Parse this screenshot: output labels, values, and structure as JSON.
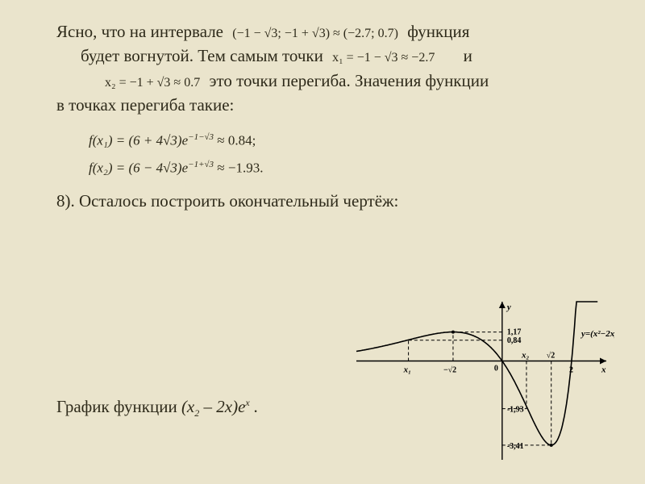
{
  "para": {
    "t1": "Ясно, что на интервале",
    "interval": "(−1 − √3; −1 + √3) ≈ (−2.7; 0.7)",
    "t2": "функция",
    "t3": "будет вогнутой. Тем самым точки",
    "x1": "x₁ = −1 − √3 ≈ −2.7",
    "t4": "и",
    "x2": "x₂ = −1 + √3 ≈ 0.7",
    "t5": "это точки перегиба. Значения функции",
    "t6": "в точках перегиба такие:"
  },
  "formulas": {
    "f1_lhs": "f(x₁) = (6 + 4√3)e",
    "f1_exp": "−1−√3",
    "f1_rhs": " ≈ 0.84;",
    "f2_lhs": "f(x₂) = (6 − 4√3)e",
    "f2_exp": "−1+√3",
    "f2_rhs": " ≈ −1.93."
  },
  "step8": "8). Осталось построить окончательный чертёж:",
  "caption": {
    "pre": "График функции ",
    "expr_open": "(x",
    "two": "2",
    "mid": " – 2x)e",
    "x": "x",
    "post": " ."
  },
  "chart": {
    "axis_color": "#000000",
    "curve_color": "#000000",
    "grid_color": "#000000",
    "background": "transparent",
    "stroke_width": 1.6,
    "dash": "4 3",
    "x_range": [
      -4.2,
      3.0
    ],
    "y_range": [
      -4.0,
      2.4
    ],
    "labels": {
      "y": "y",
      "x": "x",
      "zero": "0",
      "two": "2",
      "neg_sqrt2": "−√2",
      "sqrt2": "√2",
      "x1": "x₁",
      "x2": "x₂",
      "y117": "1,17",
      "y084": "0,84",
      "y_neg193": "-1,93",
      "y_neg341": "-3,41",
      "func": "y=(x²−2x)eˣ"
    },
    "points": {
      "x1": -2.7,
      "y1": 0.84,
      "inflection_min_sqrt2": -1.414,
      "y_at_neg_sqrt2": 1.17,
      "x2": 0.7,
      "y2": -1.93,
      "sqrt2": 1.414,
      "y_at_sqrt2": -3.41,
      "root2": 2.0
    }
  }
}
